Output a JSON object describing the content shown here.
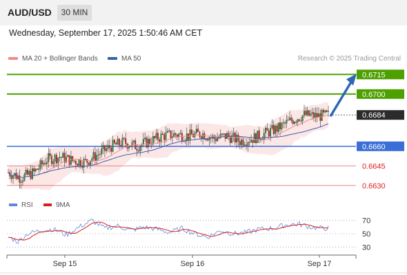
{
  "header": {
    "pair": "AUD/USD",
    "interval": "30 MIN"
  },
  "timestamp": "Wednesday, September 17, 2025 1:50:46 AM CET",
  "legend": {
    "ma20_bb": "MA 20 + Bollinger Bands",
    "ma50": "MA 50"
  },
  "copyright": "Research © 2025 Trading Central",
  "rsi_legend": {
    "rsi": "RSI",
    "ma9": "9MA"
  },
  "colors": {
    "resistance": "#4ea000",
    "current": "#2b2b2b",
    "pivot": "#3a6fd8",
    "support": "#e02020",
    "candle_up": "#2e8b2e",
    "candle_down": "#d62020",
    "arrow": "#2f67b1",
    "ma20": "#f28a8a",
    "ma50": "#3a5fa8",
    "bollinger_fill": "#fbe3e3",
    "rsi_line": "#5f86d8",
    "rsi_ma": "#d51f1f"
  },
  "chart_data": [
    {
      "type": "candlestick",
      "title": "AUD/USD 30 MIN",
      "x_tick_labels": [
        "Sep 15",
        "Sep 16",
        "Sep 17"
      ],
      "ylim": [
        0.6622,
        0.6722
      ],
      "price_levels": [
        {
          "value": 0.6715,
          "label": "0.6715",
          "kind": "resistance"
        },
        {
          "value": 0.67,
          "label": "0.6700",
          "kind": "resistance"
        },
        {
          "value": 0.6684,
          "label": "0.6684",
          "kind": "current"
        },
        {
          "value": 0.666,
          "label": "0.6660",
          "kind": "pivot"
        },
        {
          "value": 0.6645,
          "label": "0.6645",
          "kind": "support"
        },
        {
          "value": 0.663,
          "label": "0.6630",
          "kind": "support"
        }
      ],
      "arrow": {
        "from": 0.6684,
        "to": 0.6715,
        "direction": "up"
      },
      "close_anchors": [
        [
          0,
          0.664
        ],
        [
          8,
          0.6636
        ],
        [
          16,
          0.664
        ],
        [
          24,
          0.665
        ],
        [
          32,
          0.6652
        ],
        [
          40,
          0.6649
        ],
        [
          48,
          0.6648
        ],
        [
          56,
          0.6654
        ],
        [
          64,
          0.666
        ],
        [
          72,
          0.6663
        ],
        [
          80,
          0.666
        ],
        [
          88,
          0.6664
        ],
        [
          96,
          0.6668
        ],
        [
          104,
          0.6669
        ],
        [
          112,
          0.6668
        ],
        [
          120,
          0.667
        ],
        [
          128,
          0.6666
        ],
        [
          136,
          0.6668
        ],
        [
          144,
          0.6664
        ],
        [
          152,
          0.6666
        ],
        [
          160,
          0.667
        ],
        [
          168,
          0.6674
        ],
        [
          176,
          0.668
        ],
        [
          184,
          0.6684
        ],
        [
          192,
          0.6683
        ],
        [
          200,
          0.6684
        ]
      ],
      "bar_count": 200
    },
    {
      "type": "line",
      "title": "RSI",
      "series": [
        {
          "name": "RSI"
        },
        {
          "name": "9MA"
        }
      ],
      "ylim": [
        20,
        80
      ],
      "y_ticks": [
        70,
        50,
        30
      ],
      "rsi_anchors": [
        [
          0,
          45
        ],
        [
          6,
          38
        ],
        [
          12,
          50
        ],
        [
          20,
          55
        ],
        [
          28,
          57
        ],
        [
          36,
          48
        ],
        [
          44,
          60
        ],
        [
          52,
          70
        ],
        [
          60,
          58
        ],
        [
          68,
          62
        ],
        [
          76,
          55
        ],
        [
          84,
          60
        ],
        [
          92,
          57
        ],
        [
          100,
          52
        ],
        [
          108,
          58
        ],
        [
          116,
          50
        ],
        [
          124,
          45
        ],
        [
          132,
          55
        ],
        [
          140,
          50
        ],
        [
          148,
          52
        ],
        [
          156,
          57
        ],
        [
          164,
          58
        ],
        [
          172,
          63
        ],
        [
          180,
          65
        ],
        [
          188,
          60
        ],
        [
          196,
          58
        ],
        [
          200,
          59
        ]
      ]
    }
  ]
}
